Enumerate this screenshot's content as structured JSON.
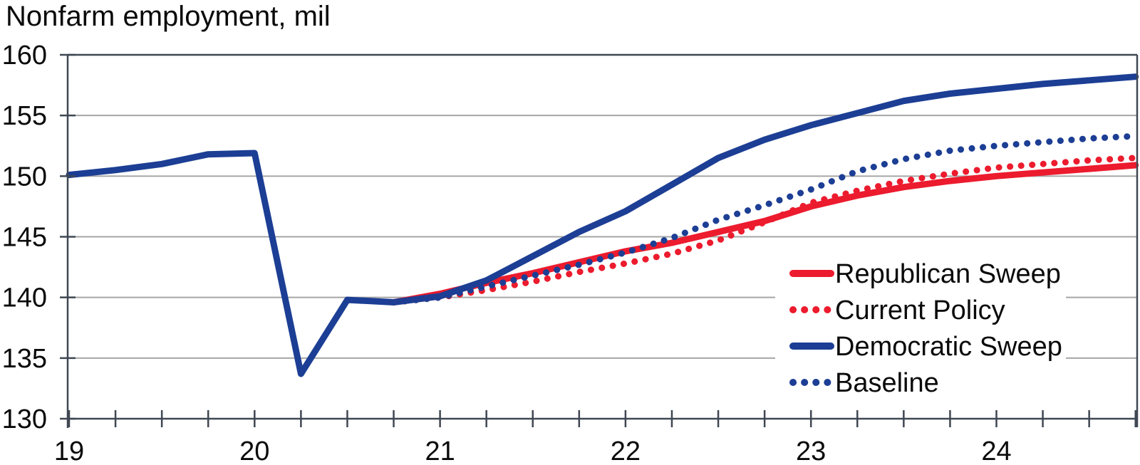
{
  "title": "Nonfarm employment, mil",
  "colors": {
    "red": "#ec1b2e",
    "blue": "#1c3e94",
    "gridline": "#a6a6a6",
    "frame": "#3f4752",
    "text": "#0a0a0a",
    "background": "#ffffff",
    "legend_background": "#ffffff"
  },
  "chart_data": {
    "type": "line",
    "title": "Nonfarm employment, mil",
    "xlabel": "",
    "ylabel": "Nonfarm employment, mil",
    "xlim": [
      19,
      24.78
    ],
    "ylim": [
      130,
      160
    ],
    "x_major_ticks": [
      19,
      20,
      21,
      22,
      23,
      24
    ],
    "x_minor_tick_step": 0.25,
    "y_ticks": [
      130,
      135,
      140,
      145,
      150,
      155,
      160
    ],
    "grid": "horizontal-only",
    "legend_position": "inside-right",
    "history": {
      "color": "#1c3e94",
      "style": "solid",
      "x": [
        19.0,
        19.25,
        19.5,
        19.75,
        20.0,
        20.25,
        20.5,
        20.75
      ],
      "values": [
        150.1,
        150.5,
        151.0,
        151.8,
        151.9,
        133.7,
        139.8,
        139.6
      ]
    },
    "forecast_x": [
      20.75,
      21.0,
      21.25,
      21.5,
      21.75,
      22.0,
      22.25,
      22.5,
      22.75,
      23.0,
      23.25,
      23.5,
      23.75,
      24.0,
      24.25,
      24.5,
      24.75
    ],
    "series": [
      {
        "name": "Republican Sweep",
        "style": "solid",
        "color": "#ec1b2e",
        "values": [
          139.6,
          140.3,
          141.2,
          142.0,
          142.9,
          143.8,
          144.5,
          145.4,
          146.3,
          147.5,
          148.4,
          149.1,
          149.6,
          150.0,
          150.3,
          150.6,
          150.9
        ]
      },
      {
        "name": "Current Policy",
        "style": "dotted",
        "color": "#ec1b2e",
        "values": [
          139.6,
          140.0,
          140.6,
          141.3,
          142.1,
          142.8,
          143.6,
          144.7,
          146.2,
          147.8,
          148.8,
          149.6,
          150.2,
          150.7,
          151.0,
          151.3,
          151.5
        ]
      },
      {
        "name": "Democratic Sweep",
        "style": "solid",
        "color": "#1c3e94",
        "values": [
          139.6,
          140.1,
          141.4,
          143.4,
          145.4,
          147.1,
          149.3,
          151.5,
          153.0,
          154.2,
          155.2,
          156.2,
          156.8,
          157.2,
          157.6,
          157.9,
          158.2
        ]
      },
      {
        "name": "Baseline",
        "style": "dotted",
        "color": "#1c3e94",
        "values": [
          139.6,
          140.0,
          140.9,
          141.8,
          142.7,
          143.7,
          144.9,
          146.4,
          147.6,
          148.9,
          150.4,
          151.4,
          152.1,
          152.5,
          152.8,
          153.1,
          153.3
        ]
      }
    ]
  }
}
